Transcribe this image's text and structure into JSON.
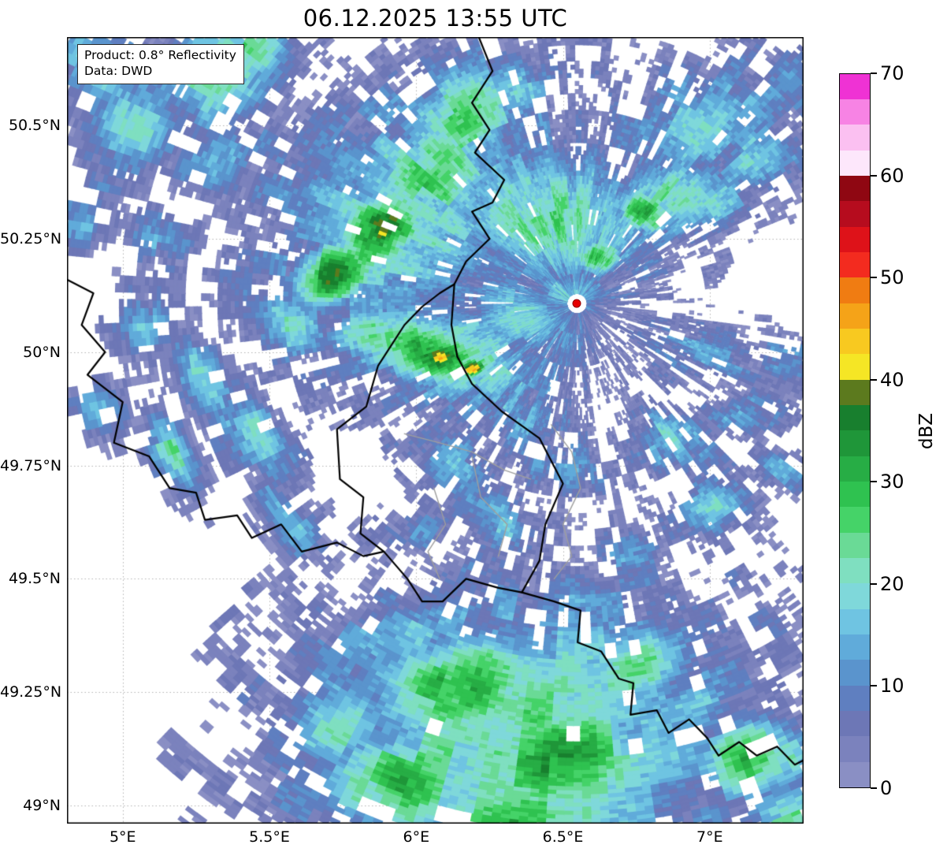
{
  "title": "06.12.2025 13:55 UTC",
  "info_box": {
    "product": "Product: 0.8° Reflectivity",
    "data": "Data: DWD"
  },
  "colorbar": {
    "label": "dBZ",
    "min": 0,
    "max": 70,
    "band_step": 2.5,
    "ticks": [
      0,
      10,
      20,
      30,
      40,
      50,
      60,
      70
    ],
    "colors": [
      "#8a8fc4",
      "#7b82bd",
      "#6d77b6",
      "#5f7fc0",
      "#5a94cd",
      "#60abda",
      "#6fc4e2",
      "#7fd8da",
      "#7fdfc0",
      "#6ada96",
      "#45d368",
      "#2fc250",
      "#27ad45",
      "#1f9639",
      "#187f2e",
      "#5c7a1e",
      "#f5e625",
      "#f8c920",
      "#f5a318",
      "#f07c12",
      "#f32b1f",
      "#de1219",
      "#b60c1e",
      "#8f0712",
      "#fde7fb",
      "#fbc0f1",
      "#f783e4",
      "#ef32d4"
    ]
  },
  "map": {
    "extent": {
      "lon_min": 4.81,
      "lon_max": 7.32,
      "lat_min": 48.96,
      "lat_max": 50.695
    },
    "x_ticks": [
      {
        "value": 5.0,
        "label": "5°E"
      },
      {
        "value": 5.5,
        "label": "5.5°E"
      },
      {
        "value": 6.0,
        "label": "6°E"
      },
      {
        "value": 6.5,
        "label": "6.5°E"
      },
      {
        "value": 7.0,
        "label": "7°E"
      }
    ],
    "y_ticks": [
      {
        "value": 50.5,
        "label": "50.5°N"
      },
      {
        "value": 50.25,
        "label": "50.25°N"
      },
      {
        "value": 50.0,
        "label": "50°N"
      },
      {
        "value": 49.75,
        "label": "49.75°N"
      },
      {
        "value": 49.5,
        "label": "49.5°N"
      },
      {
        "value": 49.25,
        "label": "49.25°N"
      },
      {
        "value": 49.0,
        "label": "49°N"
      }
    ],
    "grid_color": "#b3b3b3",
    "border_color": "#000000",
    "inner_border_color": "#9e9e9e",
    "radar_site": {
      "lon": 6.548,
      "lat": 50.107,
      "marker_color": "#e60000",
      "marker_edge": "#8f0000"
    },
    "borders": {
      "country": [
        [
          [
            6.21,
            50.7
          ],
          [
            6.26,
            50.62
          ],
          [
            6.19,
            50.55
          ],
          [
            6.25,
            50.49
          ],
          [
            6.2,
            50.44
          ],
          [
            6.3,
            50.38
          ],
          [
            6.26,
            50.33
          ],
          [
            6.19,
            50.31
          ],
          [
            6.25,
            50.25
          ],
          [
            6.17,
            50.2
          ],
          [
            6.13,
            50.15
          ]
        ],
        [
          [
            6.13,
            50.15
          ],
          [
            6.12,
            50.06
          ],
          [
            6.14,
            49.99
          ],
          [
            6.19,
            49.93
          ],
          [
            6.29,
            49.87
          ],
          [
            6.42,
            49.81
          ],
          [
            6.5,
            49.71
          ],
          [
            6.44,
            49.62
          ],
          [
            6.42,
            49.54
          ],
          [
            6.36,
            49.47
          ],
          [
            6.28,
            49.48
          ],
          [
            6.17,
            49.5
          ],
          [
            6.09,
            49.45
          ],
          [
            6.02,
            49.45
          ],
          [
            5.97,
            49.5
          ],
          [
            5.89,
            49.56
          ],
          [
            5.81,
            49.6
          ],
          [
            5.82,
            49.68
          ],
          [
            5.74,
            49.72
          ],
          [
            5.73,
            49.83
          ],
          [
            5.83,
            49.88
          ],
          [
            5.87,
            49.97
          ],
          [
            5.96,
            50.06
          ],
          [
            6.02,
            50.1
          ],
          [
            6.08,
            50.13
          ],
          [
            6.13,
            50.15
          ]
        ],
        [
          [
            4.81,
            50.16
          ],
          [
            4.9,
            50.13
          ],
          [
            4.86,
            50.06
          ],
          [
            4.94,
            50.0
          ],
          [
            4.88,
            49.95
          ],
          [
            5.0,
            49.89
          ],
          [
            4.97,
            49.8
          ],
          [
            5.09,
            49.77
          ],
          [
            5.16,
            49.7
          ],
          [
            5.25,
            49.69
          ],
          [
            5.28,
            49.63
          ],
          [
            5.39,
            49.64
          ],
          [
            5.44,
            49.59
          ],
          [
            5.54,
            49.62
          ],
          [
            5.61,
            49.56
          ],
          [
            5.73,
            49.58
          ],
          [
            5.82,
            49.55
          ],
          [
            5.89,
            49.56
          ]
        ],
        [
          [
            6.36,
            49.47
          ],
          [
            6.47,
            49.45
          ],
          [
            6.56,
            49.43
          ],
          [
            6.55,
            49.36
          ],
          [
            6.63,
            49.34
          ],
          [
            6.69,
            49.28
          ],
          [
            6.74,
            49.27
          ],
          [
            6.73,
            49.2
          ],
          [
            6.82,
            49.21
          ],
          [
            6.86,
            49.16
          ],
          [
            6.93,
            49.19
          ],
          [
            6.99,
            49.15
          ],
          [
            7.03,
            49.11
          ],
          [
            7.1,
            49.14
          ],
          [
            7.16,
            49.11
          ],
          [
            7.23,
            49.13
          ],
          [
            7.29,
            49.09
          ],
          [
            7.32,
            49.1
          ]
        ]
      ],
      "internal": [
        [
          [
            5.96,
            49.82
          ],
          [
            6.08,
            49.8
          ],
          [
            6.19,
            49.78
          ],
          [
            6.3,
            49.74
          ],
          [
            6.39,
            49.72
          ]
        ],
        [
          [
            6.06,
            49.7
          ],
          [
            6.1,
            49.62
          ],
          [
            6.04,
            49.56
          ],
          [
            6.08,
            49.5
          ]
        ],
        [
          [
            6.19,
            49.77
          ],
          [
            6.22,
            49.68
          ],
          [
            6.31,
            49.62
          ],
          [
            6.28,
            49.55
          ]
        ],
        [
          [
            6.46,
            49.84
          ],
          [
            6.53,
            49.78
          ],
          [
            6.56,
            49.7
          ],
          [
            6.5,
            49.62
          ],
          [
            6.53,
            49.55
          ],
          [
            6.47,
            49.5
          ]
        ]
      ]
    }
  },
  "chart_data": {
    "type": "heatmap",
    "subtype": "radar_reflectivity_ppi",
    "title": "06.12.2025 13:55 UTC",
    "units": "dBZ",
    "value_range": [
      0,
      70
    ],
    "elevation": "0.8°",
    "source": "DWD",
    "radar_site": {
      "lon": 6.548,
      "lat": 50.107
    },
    "grid": {
      "lon_step": 0.5,
      "lat_step": 0.25,
      "style": "dotted"
    },
    "cell_format": [
      "lon",
      "lat",
      "rx_km",
      "ry_km",
      "rot_deg",
      "peak_dbz"
    ],
    "cells": [
      [
        6.0,
        50.32,
        38,
        26,
        35,
        20
      ],
      [
        5.88,
        50.27,
        13,
        9,
        35,
        36
      ],
      [
        5.885,
        50.265,
        4.5,
        3.5,
        35,
        45
      ],
      [
        5.71,
        50.17,
        11,
        8,
        30,
        35
      ],
      [
        6.07,
        50.4,
        18,
        14,
        40,
        26
      ],
      [
        6.17,
        50.52,
        15,
        12,
        35,
        24
      ],
      [
        5.57,
        50.06,
        9,
        8,
        0,
        20
      ],
      [
        6.32,
        50.58,
        10,
        8,
        20,
        18
      ],
      [
        6.45,
        50.3,
        25,
        16,
        -10,
        24
      ],
      [
        6.62,
        50.21,
        6,
        4.5,
        0,
        32
      ],
      [
        6.78,
        50.31,
        8,
        5,
        -20,
        30
      ],
      [
        6.9,
        50.34,
        16,
        10,
        0,
        22
      ],
      [
        6.97,
        50.5,
        20,
        13,
        25,
        17
      ],
      [
        7.18,
        50.43,
        11,
        8,
        15,
        19
      ],
      [
        7.28,
        50.6,
        8,
        8,
        0,
        13
      ],
      [
        5.35,
        50.63,
        18,
        11,
        35,
        25
      ],
      [
        5.06,
        50.5,
        11,
        9,
        0,
        23
      ],
      [
        4.95,
        50.63,
        14,
        9,
        -25,
        19
      ],
      [
        5.32,
        50.43,
        14,
        7,
        25,
        13
      ],
      [
        4.87,
        50.3,
        9,
        8,
        0,
        15
      ],
      [
        5.15,
        50.26,
        10,
        6,
        -30,
        14
      ],
      [
        5.52,
        50.36,
        8,
        6,
        0,
        11
      ],
      [
        6.1,
        50.0,
        25,
        12,
        -15,
        23
      ],
      [
        6.05,
        50.0,
        15,
        8,
        -15,
        34
      ],
      [
        6.08,
        49.99,
        4,
        3,
        0,
        45
      ],
      [
        6.19,
        49.965,
        3.5,
        2.5,
        0,
        43
      ],
      [
        5.86,
        50.03,
        11,
        6,
        -15,
        27
      ],
      [
        6.36,
        50.08,
        14,
        9,
        -20,
        19
      ],
      [
        6.52,
        50.13,
        11,
        6,
        0,
        16
      ],
      [
        7.0,
        50.0,
        18,
        7,
        -10,
        11
      ],
      [
        7.25,
        49.99,
        9,
        6,
        -20,
        13
      ],
      [
        5.28,
        49.93,
        16,
        6,
        -60,
        19
      ],
      [
        5.47,
        49.81,
        18,
        6,
        -60,
        17
      ],
      [
        5.17,
        49.79,
        12,
        5,
        -60,
        21
      ],
      [
        5.56,
        49.64,
        14,
        5,
        -55,
        15
      ],
      [
        5.07,
        50.06,
        9,
        6,
        -50,
        17
      ],
      [
        4.92,
        49.87,
        8,
        5,
        -50,
        13
      ],
      [
        6.12,
        49.76,
        11,
        7,
        -30,
        13
      ],
      [
        6.27,
        49.63,
        13,
        7,
        -30,
        15
      ],
      [
        6.02,
        49.61,
        9,
        6,
        0,
        11
      ],
      [
        6.47,
        49.76,
        14,
        7,
        -15,
        11
      ],
      [
        6.32,
        49.86,
        17,
        8,
        -20,
        13
      ],
      [
        6.87,
        49.81,
        11,
        7,
        0,
        17
      ],
      [
        7.02,
        49.66,
        9,
        6,
        0,
        19
      ],
      [
        6.72,
        49.56,
        8,
        5,
        0,
        13
      ],
      [
        7.12,
        49.86,
        8,
        5,
        0,
        15
      ],
      [
        7.25,
        49.74,
        7,
        5,
        0,
        12
      ],
      [
        6.35,
        49.13,
        48,
        36,
        10,
        24
      ],
      [
        6.15,
        49.26,
        22,
        14,
        20,
        31
      ],
      [
        6.5,
        49.1,
        22,
        16,
        10,
        33
      ],
      [
        5.95,
        49.05,
        18,
        14,
        0,
        29
      ],
      [
        6.77,
        49.31,
        14,
        9,
        25,
        23
      ],
      [
        6.92,
        49.21,
        11,
        8,
        0,
        19
      ],
      [
        6.02,
        49.39,
        25,
        10,
        10,
        15
      ],
      [
        6.57,
        49.46,
        18,
        8,
        -20,
        13
      ],
      [
        7.16,
        49.1,
        13,
        10,
        0,
        29
      ],
      [
        7.27,
        48.99,
        11,
        8,
        0,
        23
      ],
      [
        5.75,
        49.18,
        14,
        10,
        0,
        21
      ],
      [
        6.35,
        48.98,
        30,
        12,
        0,
        27
      ]
    ]
  }
}
